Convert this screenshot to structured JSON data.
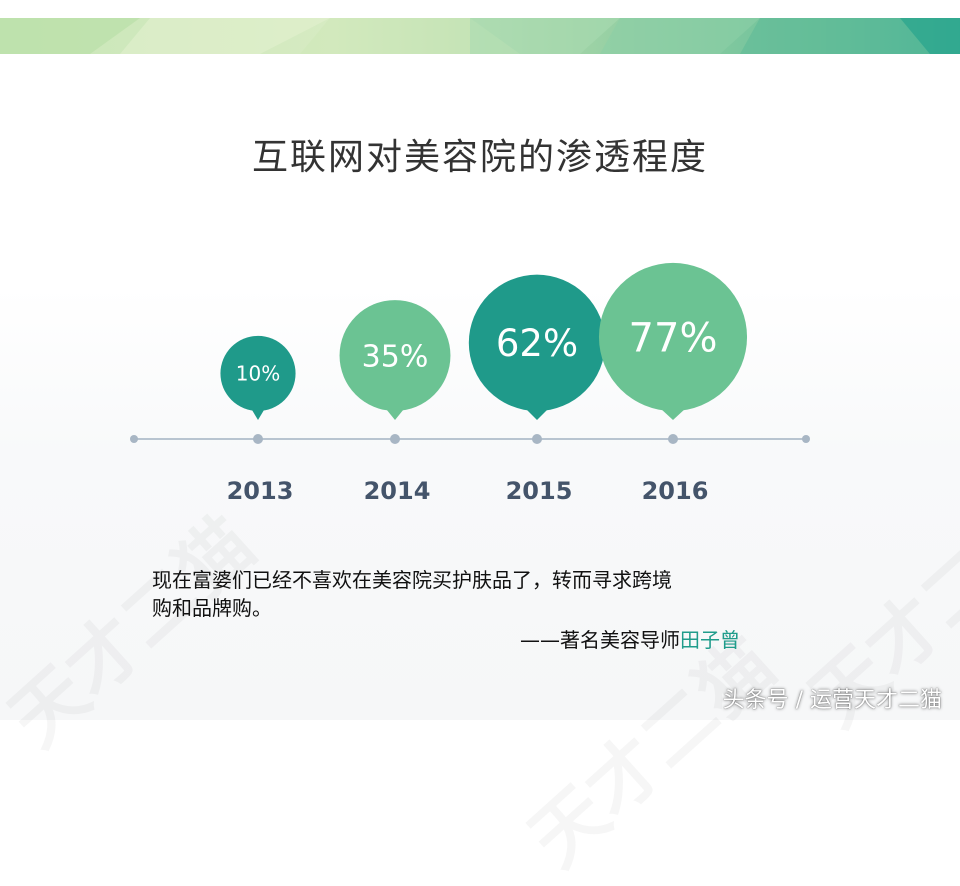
{
  "title": "互联网对美容院的渗透程度",
  "colors": {
    "dark_teal": "#1f9a8a",
    "light_green": "#6bc393",
    "timeline": "#b8c4d0",
    "dot": "#a8b6c4",
    "year_text": "#44546a",
    "accent": "#1f9c8b"
  },
  "chart_data": {
    "type": "bubble",
    "title": "互联网对美容院的渗透程度",
    "categories": [
      "2013",
      "2014",
      "2015",
      "2016"
    ],
    "values": [
      10,
      35,
      62,
      77
    ],
    "labels": [
      "10%",
      "35%",
      "62%",
      "77%"
    ],
    "unit": "%"
  },
  "quote": {
    "line1": "现在富婆们已经不喜欢在美容院买护肤品了，转而寻求跨境",
    "line2": "购和品牌购。",
    "attribution_prefix": "——著名美容导师",
    "attribution_name": "田子曾"
  },
  "watermark": {
    "footer": "头条号 / 运营天才二猫",
    "background": "天才二猫"
  }
}
